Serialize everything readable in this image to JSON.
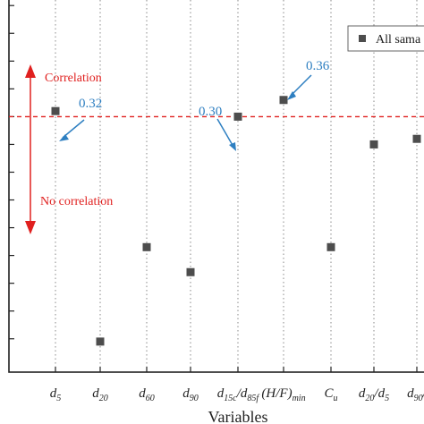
{
  "chart_data": {
    "type": "scatter",
    "xlabel": "Variables",
    "ylabel": "",
    "categories": [
      {
        "base": "d",
        "sub": "5",
        "sup_tail": ""
      },
      {
        "base": "d",
        "sub": "20",
        "sup_tail": ""
      },
      {
        "base": "d",
        "sub": "60",
        "sup_tail": ""
      },
      {
        "base": "d",
        "sub": "90",
        "sup_tail": ""
      },
      {
        "base": "d",
        "sub": "15c",
        "sup_tail": "/d",
        "sub2": "85f"
      },
      {
        "base": "(H/F)",
        "sub": "min",
        "sup_tail": ""
      },
      {
        "base": "C",
        "sub": "u",
        "sup_tail": ""
      },
      {
        "base": "d",
        "sub": "20",
        "sup_tail": "/d",
        "sub2": "5"
      },
      {
        "base": "d",
        "sub": "90",
        "sup_tail": "/"
      }
    ],
    "series": [
      {
        "name": "All samples",
        "color": "#4d4d4d",
        "values": [
          0.32,
          -0.51,
          -0.17,
          -0.26,
          0.3,
          0.36,
          -0.17,
          0.2,
          0.22
        ]
      }
    ],
    "threshold": {
      "value": 0.3,
      "color": "#e0201f",
      "style": "dashed"
    },
    "ylim": [
      -0.62,
      0.72
    ],
    "grid": "vertical-dotted",
    "legend": {
      "label": "All sama",
      "placement": "top-right"
    },
    "annotations": [
      {
        "text": "Correlation",
        "color": "#e0201f"
      },
      {
        "text": "No correlation",
        "color": "#e0201f"
      },
      {
        "text": "0.32",
        "color": "#2e7fc1",
        "point_index": 0
      },
      {
        "text": "0.30",
        "color": "#2e7fc1",
        "point_index": 4
      },
      {
        "text": "0.36",
        "color": "#2e7fc1",
        "point_index": 5
      }
    ]
  }
}
